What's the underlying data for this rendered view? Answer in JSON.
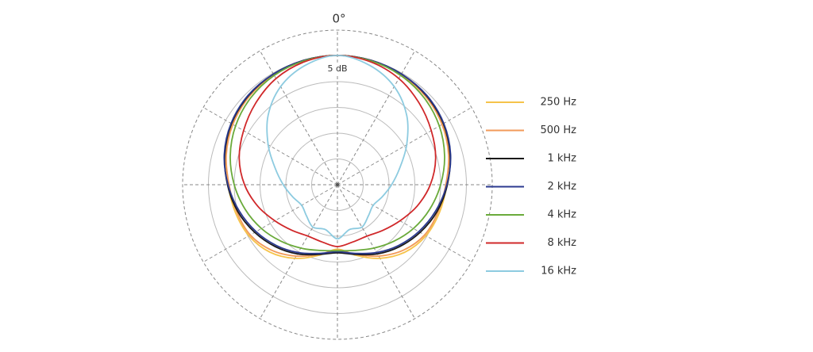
{
  "chart_data": {
    "type": "polar",
    "title": "0°",
    "radial_label": "5 dB",
    "rlim": [
      -30,
      0
    ],
    "rticks": [
      -25,
      -20,
      -15,
      -10,
      -5,
      0
    ],
    "thetagrid": [
      0,
      30,
      60,
      90,
      120,
      150,
      180,
      210,
      240,
      270,
      300,
      330
    ],
    "theta": [
      0,
      15,
      30,
      45,
      60,
      75,
      90,
      105,
      120,
      135,
      150,
      165,
      180,
      195,
      210,
      225,
      240,
      255,
      270,
      285,
      300,
      315,
      330,
      345
    ],
    "series": [
      {
        "name": "250 Hz",
        "color": "#f6c34a",
        "values": [
          -4.9,
          -5,
          -5.3,
          -5.8,
          -6.5,
          -7.5,
          -8.8,
          -9.5,
          -10.2,
          -11.5,
          -13.5,
          -15.8,
          -17.5,
          -15.8,
          -13.5,
          -11.5,
          -10.2,
          -9.5,
          -8.8,
          -7.5,
          -6.5,
          -5.8,
          -5.3,
          -5
        ]
      },
      {
        "name": "500 Hz",
        "color": "#f29a5a",
        "values": [
          -4.9,
          -5,
          -5.3,
          -5.8,
          -6.6,
          -7.7,
          -9,
          -9.8,
          -10.5,
          -12,
          -14,
          -16,
          -17.3,
          -16,
          -14,
          -12,
          -10.5,
          -9.8,
          -9,
          -7.7,
          -6.6,
          -5.8,
          -5.3,
          -5
        ]
      },
      {
        "name": "1 kHz",
        "color": "#1a1a1a",
        "values": [
          -4.9,
          -5,
          -5.2,
          -5.6,
          -6.3,
          -7.4,
          -8.7,
          -10,
          -11.5,
          -13,
          -14.5,
          -16,
          -16.8,
          -16,
          -14.5,
          -13,
          -11.5,
          -10,
          -8.7,
          -7.4,
          -6.3,
          -5.6,
          -5.2,
          -5
        ]
      },
      {
        "name": "2 kHz",
        "color": "#2b3a8f",
        "values": [
          -4.9,
          -5,
          -5.2,
          -5.5,
          -6.2,
          -7.3,
          -8.8,
          -10.3,
          -11.8,
          -13.3,
          -14.8,
          -16.2,
          -17,
          -16.2,
          -14.8,
          -13.3,
          -11.8,
          -10.3,
          -8.8,
          -7.3,
          -6.2,
          -5.5,
          -5.2,
          -5
        ]
      },
      {
        "name": "4 kHz",
        "color": "#6aaa3a",
        "values": [
          -4.9,
          -5.1,
          -5.5,
          -6.2,
          -7.2,
          -8.5,
          -10,
          -11.5,
          -13,
          -14.5,
          -15.8,
          -16.8,
          -17.2,
          -16.8,
          -15.8,
          -14.5,
          -13,
          -11.5,
          -10,
          -8.5,
          -7.2,
          -6.2,
          -5.5,
          -5.1
        ]
      },
      {
        "name": "8 kHz",
        "color": "#d0282a",
        "values": [
          -4.9,
          -5.3,
          -6.2,
          -7.6,
          -9,
          -10.3,
          -12,
          -14,
          -16,
          -17.5,
          -18.5,
          -18.5,
          -18,
          -18.5,
          -18.5,
          -17.5,
          -16,
          -14,
          -12,
          -10.3,
          -9,
          -7.6,
          -6.2,
          -5.3
        ]
      },
      {
        "name": "16 kHz",
        "color": "#8dcbe0",
        "values": [
          -4.9,
          -6,
          -8,
          -11,
          -14.5,
          -17.5,
          -19.5,
          -21,
          -22,
          -21.5,
          -20.5,
          -21,
          -19.5,
          -21,
          -20.5,
          -21.5,
          -22,
          -21,
          -19.5,
          -17.5,
          -14.5,
          -11,
          -8,
          -6
        ]
      }
    ]
  }
}
